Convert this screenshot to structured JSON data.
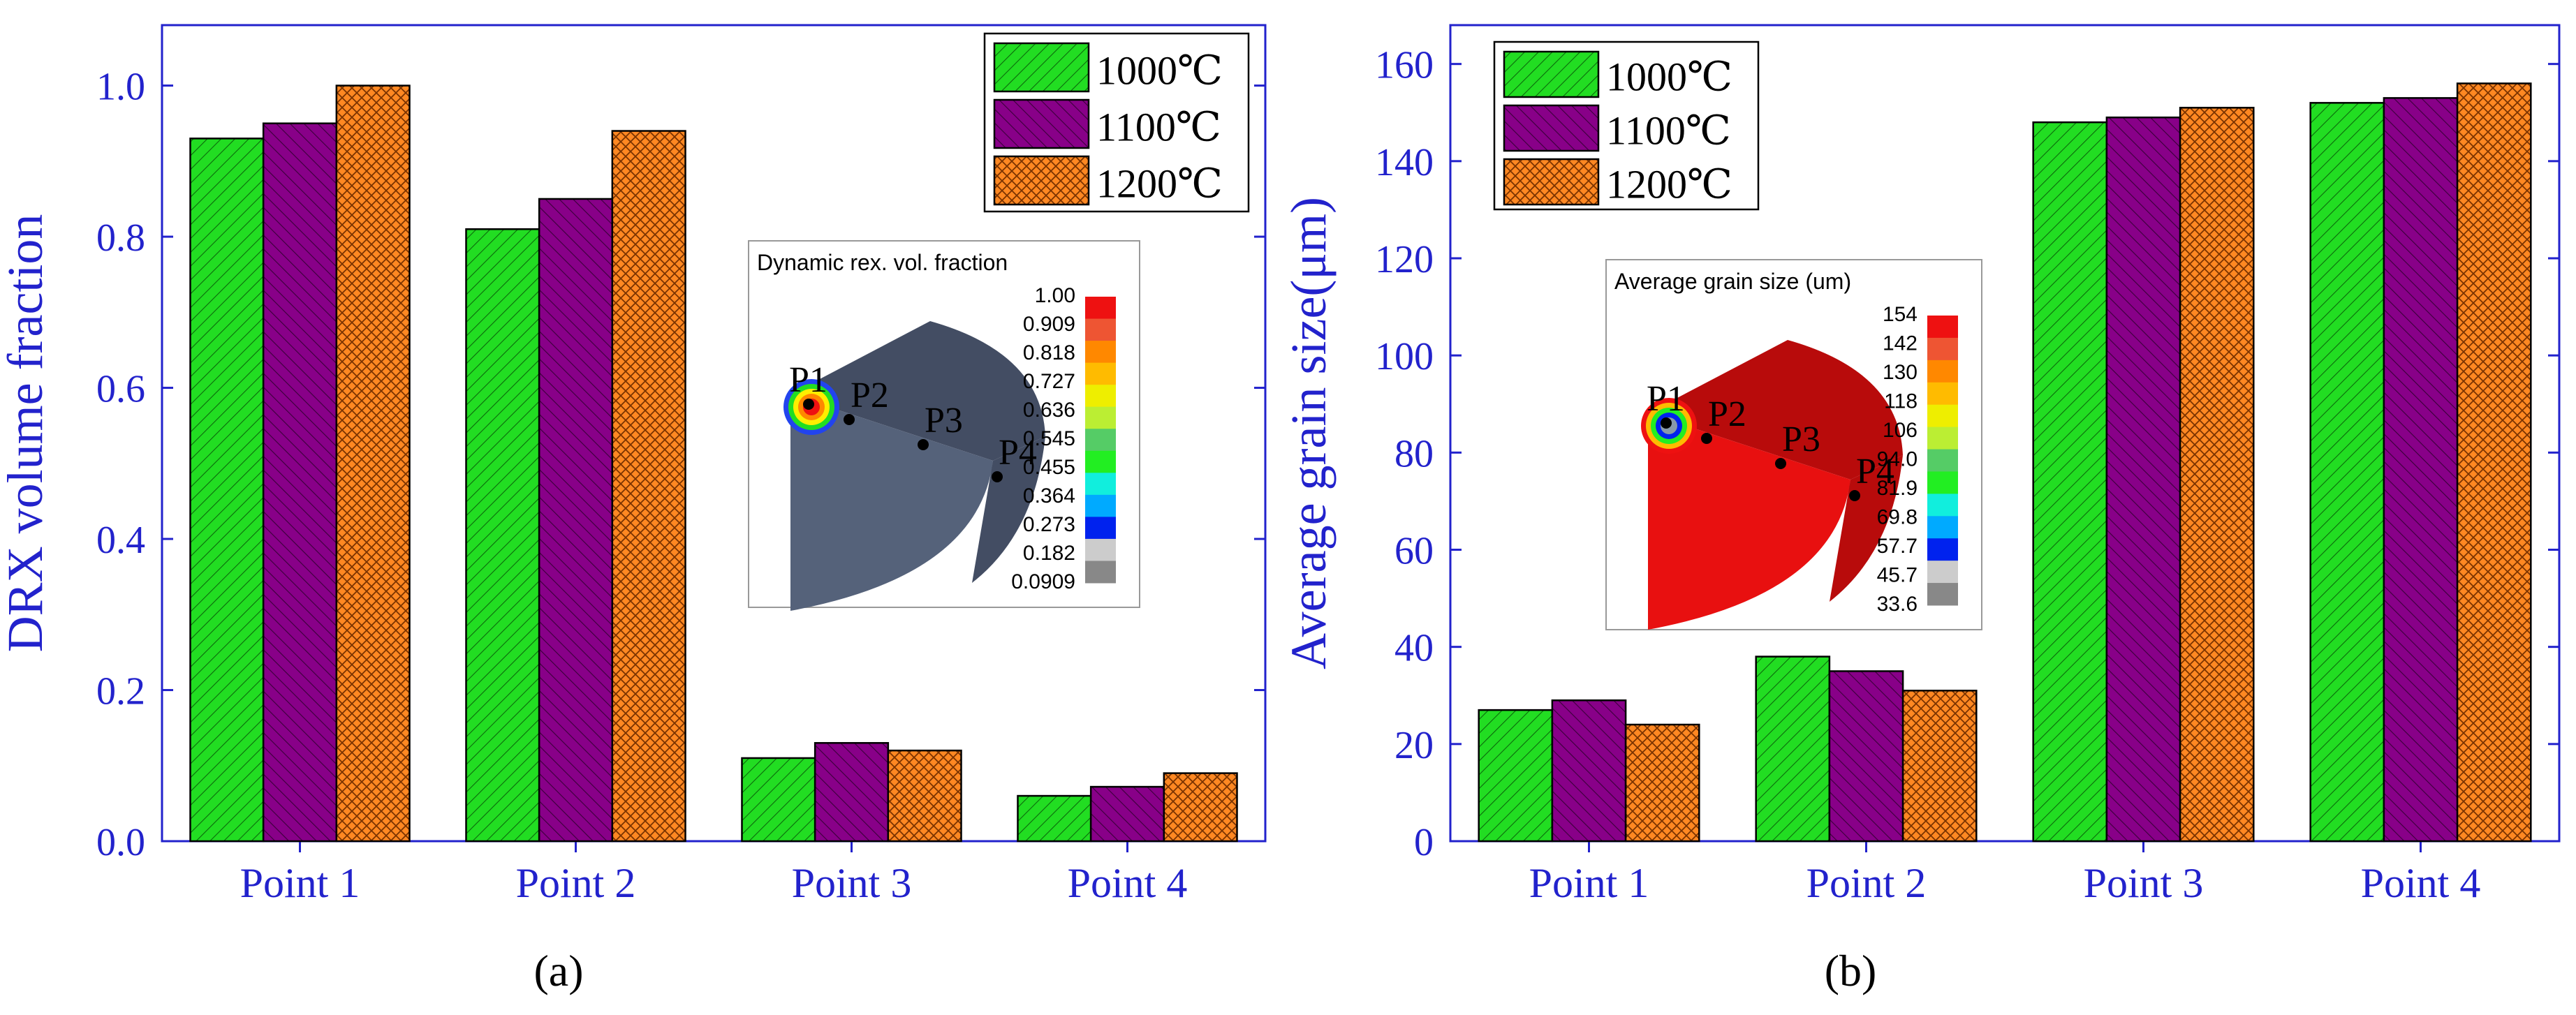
{
  "chart_data": [
    {
      "type": "bar",
      "panel_label": "(a)",
      "ylabel": "DRX volume fraction",
      "xlabel": "",
      "ylim": [
        0,
        1.08
      ],
      "yticks": [
        "0.0",
        "0.2",
        "0.4",
        "0.6",
        "0.8",
        "1.0"
      ],
      "ytick_values": [
        0,
        0.2,
        0.4,
        0.6,
        0.8,
        1.0
      ],
      "categories": [
        "Point 1",
        "Point 2",
        "Point 3",
        "Point 4"
      ],
      "series": [
        {
          "name": "1000℃",
          "color": "#22dd22",
          "values": [
            0.93,
            0.81,
            0.11,
            0.06
          ]
        },
        {
          "name": "1100℃",
          "color": "#880088",
          "values": [
            0.95,
            0.85,
            0.13,
            0.072
          ]
        },
        {
          "name": "1200℃",
          "color": "#ff8822",
          "values": [
            1.0,
            0.94,
            0.12,
            0.09
          ]
        }
      ],
      "legend_position": "top-right",
      "inset": {
        "title": "Dynamic rex. vol. fraction",
        "scale_labels": [
          "1.00",
          "0.909",
          "0.818",
          "0.727",
          "0.636",
          "0.545",
          "0.455",
          "0.364",
          "0.273",
          "0.182",
          "0.0909"
        ],
        "point_labels": [
          "P1",
          "P2",
          "P3",
          "P4"
        ],
        "body_color": "#55627a"
      }
    },
    {
      "type": "bar",
      "panel_label": "(b)",
      "ylabel": "Average grain size(μm)",
      "xlabel": "",
      "ylim": [
        0,
        168
      ],
      "yticks": [
        "0",
        "20",
        "40",
        "60",
        "80",
        "100",
        "120",
        "140",
        "160"
      ],
      "ytick_values": [
        0,
        20,
        40,
        60,
        80,
        100,
        120,
        140,
        160
      ],
      "categories": [
        "Point 1",
        "Point 2",
        "Point 3",
        "Point 4"
      ],
      "series": [
        {
          "name": "1000℃",
          "color": "#22dd22",
          "values": [
            27,
            38,
            148,
            152
          ]
        },
        {
          "name": "1100℃",
          "color": "#880088",
          "values": [
            29,
            35,
            149,
            153
          ]
        },
        {
          "name": "1200℃",
          "color": "#ff8822",
          "values": [
            24,
            31,
            151,
            156
          ]
        }
      ],
      "legend_position": "top-left",
      "inset": {
        "title": "Average grain size (um)",
        "scale_labels": [
          "154",
          "142",
          "130",
          "118",
          "106",
          "94.0",
          "81.9",
          "69.8",
          "57.7",
          "45.7",
          "33.6"
        ],
        "point_labels": [
          "P1",
          "P2",
          "P3",
          "P4"
        ],
        "body_color": "#e81010"
      }
    }
  ],
  "colorbar_colors": [
    "#ee1111",
    "#ee5533",
    "#ff8800",
    "#ffbb00",
    "#eeee00",
    "#bbee33",
    "#55cc66",
    "#22ee22",
    "#11eedd",
    "#00aaff",
    "#0022ee",
    "#cccccc",
    "#888888"
  ]
}
